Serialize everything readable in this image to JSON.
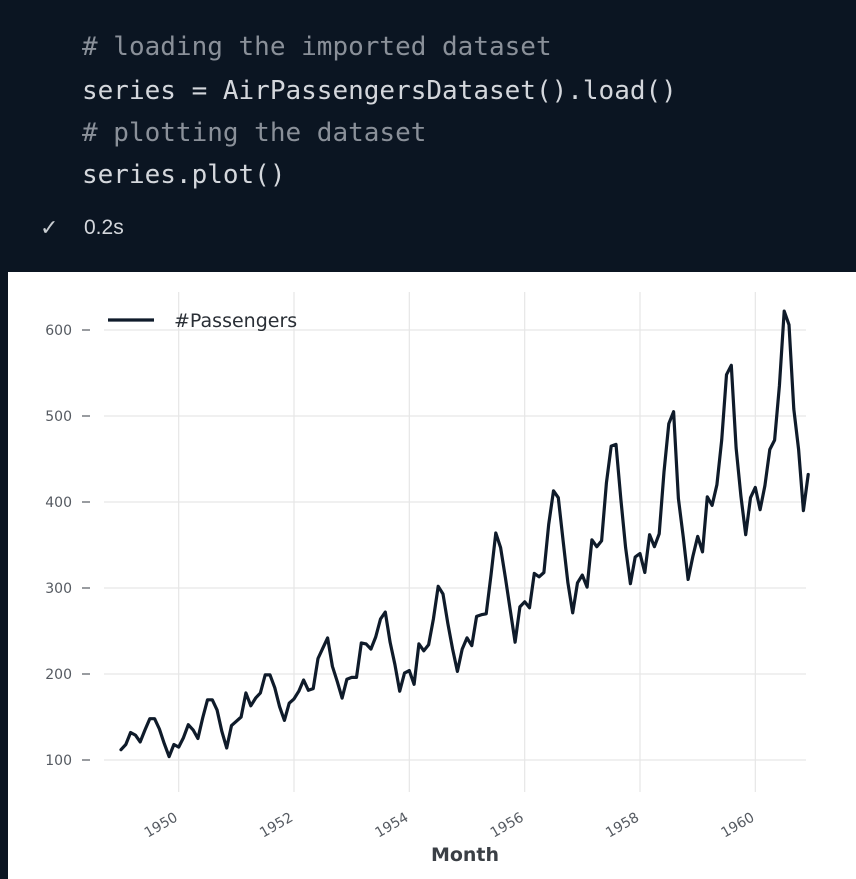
{
  "code_cell": {
    "lines": [
      {
        "text": "# loading the imported dataset",
        "kind": "comment"
      },
      {
        "text": "series = AirPassengersDataset().load()",
        "kind": "code"
      },
      {
        "text": "# plotting the dataset",
        "kind": "comment"
      },
      {
        "text": "series.plot()",
        "kind": "code"
      }
    ],
    "status": {
      "icon": "check-icon",
      "time": "0.2s"
    }
  },
  "colors": {
    "editor_bg": "#0b1522",
    "line": "#0f1b2a",
    "grid": "#e6e6e6"
  },
  "chart_data": {
    "type": "line",
    "title": "",
    "xlabel": "Month",
    "ylabel": "",
    "xlim": [
      1949.0,
      1961.0
    ],
    "ylim": [
      100,
      630
    ],
    "xticks": [
      1950,
      1952,
      1954,
      1956,
      1958,
      1960
    ],
    "yticks": [
      100,
      200,
      300,
      400,
      500,
      600
    ],
    "grid": true,
    "legend": {
      "position": "top-left"
    },
    "x_start": "1949-01",
    "x_frequency": "monthly",
    "series": [
      {
        "name": "#Passengers",
        "values": [
          112,
          118,
          132,
          129,
          121,
          135,
          148,
          148,
          136,
          119,
          104,
          118,
          115,
          126,
          141,
          135,
          125,
          149,
          170,
          170,
          158,
          133,
          114,
          140,
          145,
          150,
          178,
          163,
          172,
          178,
          199,
          199,
          184,
          162,
          146,
          166,
          171,
          180,
          193,
          181,
          183,
          218,
          230,
          242,
          209,
          191,
          172,
          194,
          196,
          196,
          236,
          235,
          229,
          243,
          264,
          272,
          237,
          211,
          180,
          201,
          204,
          188,
          235,
          227,
          234,
          264,
          302,
          293,
          259,
          229,
          203,
          229,
          242,
          233,
          267,
          269,
          270,
          315,
          364,
          347,
          312,
          274,
          237,
          278,
          284,
          277,
          317,
          313,
          318,
          374,
          413,
          405,
          355,
          306,
          271,
          306,
          315,
          301,
          356,
          348,
          355,
          422,
          465,
          467,
          404,
          347,
          305,
          336,
          340,
          318,
          362,
          348,
          363,
          435,
          491,
          505,
          404,
          359,
          310,
          337,
          360,
          342,
          406,
          396,
          420,
          472,
          548,
          559,
          463,
          407,
          362,
          405,
          417,
          391,
          419,
          461,
          472,
          535,
          622,
          606,
          508,
          461,
          390,
          432
        ]
      }
    ]
  }
}
